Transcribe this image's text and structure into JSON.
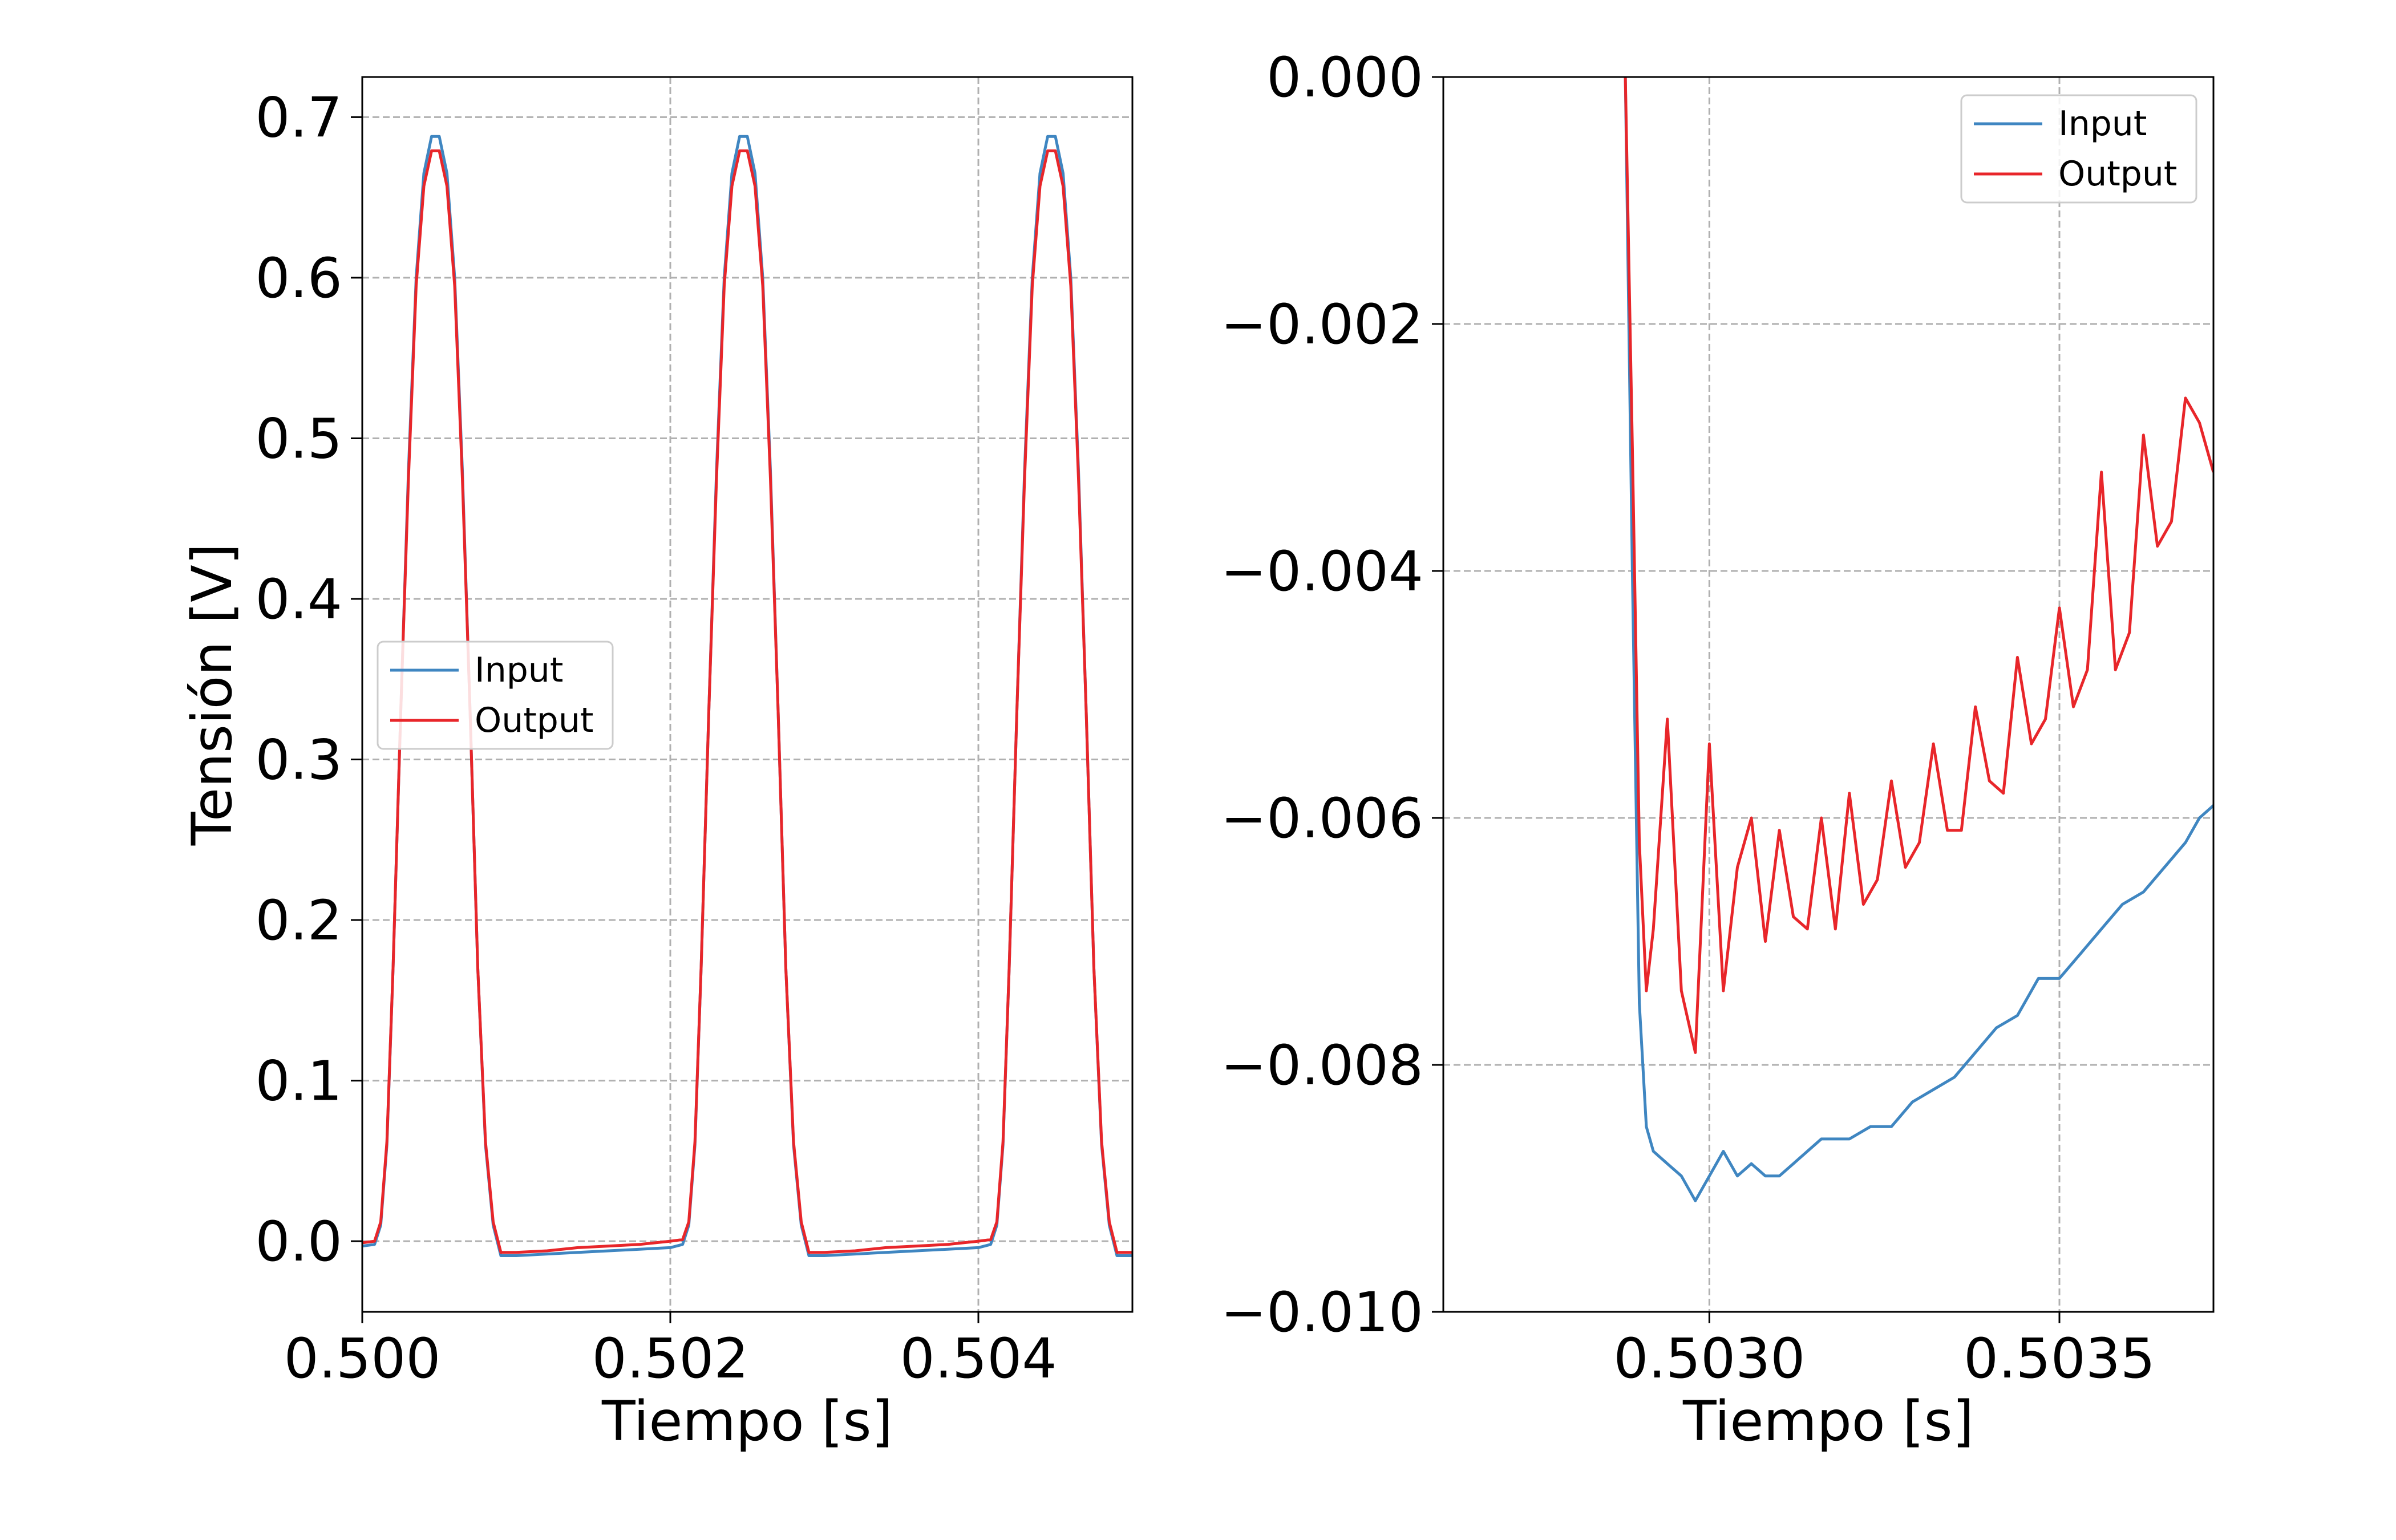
{
  "chart_data": [
    {
      "type": "line",
      "xlabel": "Tiempo [s]",
      "ylabel": "Tensión [V]",
      "xlim": [
        0.5,
        0.505
      ],
      "ylim": [
        -0.044,
        0.725
      ],
      "xticks": [
        0.5,
        0.502,
        0.504
      ],
      "xtick_labels": [
        "0.500",
        "0.502",
        "0.504"
      ],
      "yticks": [
        0.0,
        0.1,
        0.2,
        0.3,
        0.4,
        0.5,
        0.6,
        0.7
      ],
      "ytick_labels": [
        "0.0",
        "0.1",
        "0.2",
        "0.3",
        "0.4",
        "0.5",
        "0.6",
        "0.7"
      ],
      "grid": true,
      "legend_position": "center-left",
      "series": [
        {
          "name": "Input",
          "color": "#3f86c1",
          "x": [
            0.5,
            0.50008,
            0.50012,
            0.50016,
            0.5002,
            0.50025,
            0.5003,
            0.50035,
            0.5004,
            0.50045,
            0.5005,
            0.50055,
            0.5006,
            0.50065,
            0.5007,
            0.50075,
            0.5008,
            0.50085,
            0.5009,
            0.501,
            0.5012,
            0.5014,
            0.5016,
            0.5018,
            0.502,
            0.50208,
            0.50212,
            0.50216,
            0.5022,
            0.50225,
            0.5023,
            0.50235,
            0.5024,
            0.50245,
            0.5025,
            0.50255,
            0.5026,
            0.50265,
            0.5027,
            0.50275,
            0.5028,
            0.50285,
            0.5029,
            0.503,
            0.5032,
            0.5034,
            0.5036,
            0.5038,
            0.504,
            0.50408,
            0.50412,
            0.50416,
            0.5042,
            0.50425,
            0.5043,
            0.50435,
            0.5044,
            0.50445,
            0.5045,
            0.50455,
            0.5046,
            0.50465,
            0.5047,
            0.50475,
            0.5048,
            0.50485,
            0.5049,
            0.50495,
            0.505
          ],
          "y": [
            -0.003,
            -0.002,
            0.01,
            0.06,
            0.17,
            0.33,
            0.48,
            0.6,
            0.665,
            0.688,
            0.688,
            0.665,
            0.6,
            0.48,
            0.33,
            0.17,
            0.06,
            0.01,
            -0.009,
            -0.009,
            -0.008,
            -0.007,
            -0.006,
            -0.005,
            -0.004,
            -0.002,
            0.01,
            0.06,
            0.17,
            0.33,
            0.48,
            0.6,
            0.665,
            0.688,
            0.688,
            0.665,
            0.6,
            0.48,
            0.33,
            0.17,
            0.06,
            0.01,
            -0.009,
            -0.009,
            -0.008,
            -0.007,
            -0.006,
            -0.005,
            -0.004,
            -0.002,
            0.01,
            0.06,
            0.17,
            0.33,
            0.48,
            0.6,
            0.665,
            0.688,
            0.688,
            0.665,
            0.6,
            0.48,
            0.33,
            0.17,
            0.06,
            0.01,
            -0.009,
            -0.009,
            -0.009
          ]
        },
        {
          "name": "Output",
          "color": "#e8262a",
          "x": [
            0.5,
            0.50008,
            0.50012,
            0.50016,
            0.5002,
            0.50025,
            0.5003,
            0.50035,
            0.5004,
            0.50045,
            0.5005,
            0.50055,
            0.5006,
            0.50065,
            0.5007,
            0.50075,
            0.5008,
            0.50085,
            0.5009,
            0.501,
            0.5012,
            0.5014,
            0.5016,
            0.5018,
            0.502,
            0.50208,
            0.50212,
            0.50216,
            0.5022,
            0.50225,
            0.5023,
            0.50235,
            0.5024,
            0.50245,
            0.5025,
            0.50255,
            0.5026,
            0.50265,
            0.5027,
            0.50275,
            0.5028,
            0.50285,
            0.5029,
            0.503,
            0.5032,
            0.5034,
            0.5036,
            0.5038,
            0.504,
            0.50408,
            0.50412,
            0.50416,
            0.5042,
            0.50425,
            0.5043,
            0.50435,
            0.5044,
            0.50445,
            0.5045,
            0.50455,
            0.5046,
            0.50465,
            0.5047,
            0.50475,
            0.5048,
            0.50485,
            0.5049,
            0.50495,
            0.505
          ],
          "y": [
            -0.001,
            0.0,
            0.012,
            0.062,
            0.17,
            0.33,
            0.475,
            0.595,
            0.657,
            0.679,
            0.679,
            0.657,
            0.595,
            0.475,
            0.33,
            0.17,
            0.062,
            0.012,
            -0.007,
            -0.007,
            -0.006,
            -0.004,
            -0.003,
            -0.002,
            0.0,
            0.001,
            0.012,
            0.062,
            0.17,
            0.33,
            0.475,
            0.595,
            0.657,
            0.679,
            0.679,
            0.657,
            0.595,
            0.475,
            0.33,
            0.17,
            0.062,
            0.012,
            -0.007,
            -0.007,
            -0.006,
            -0.004,
            -0.003,
            -0.002,
            0.0,
            0.001,
            0.012,
            0.062,
            0.17,
            0.33,
            0.475,
            0.595,
            0.657,
            0.679,
            0.679,
            0.657,
            0.595,
            0.475,
            0.33,
            0.17,
            0.062,
            0.012,
            -0.007,
            -0.007,
            -0.007
          ]
        }
      ]
    },
    {
      "type": "line",
      "xlabel": "Tiempo [s]",
      "ylabel": "",
      "xlim": [
        0.50262,
        0.50372
      ],
      "ylim": [
        -0.01,
        0.0
      ],
      "xticks": [
        0.503,
        0.5035
      ],
      "xtick_labels": [
        "0.5030",
        "0.5035"
      ],
      "yticks": [
        0.0,
        -0.002,
        -0.004,
        -0.006,
        -0.008,
        -0.01
      ],
      "ytick_labels": [
        "0.000",
        "−0.002",
        "−0.004",
        "−0.006",
        "−0.008",
        "−0.010"
      ],
      "grid": true,
      "legend_position": "upper-right",
      "series": [
        {
          "name": "Input",
          "color": "#3f86c1",
          "x": [
            0.50288,
            0.50289,
            0.5029,
            0.50291,
            0.50292,
            0.50294,
            0.50296,
            0.50298,
            0.503,
            0.50302,
            0.50304,
            0.50306,
            0.50308,
            0.5031,
            0.50312,
            0.50314,
            0.50316,
            0.50318,
            0.5032,
            0.50323,
            0.50326,
            0.50329,
            0.50332,
            0.50335,
            0.50338,
            0.50341,
            0.50344,
            0.50347,
            0.5035,
            0.50353,
            0.50356,
            0.50359,
            0.50362,
            0.50365,
            0.50368,
            0.5037,
            0.50372
          ],
          "y": [
            0.0,
            -0.004,
            -0.0075,
            -0.0085,
            -0.0087,
            -0.0088,
            -0.0089,
            -0.0091,
            -0.0089,
            -0.0087,
            -0.0089,
            -0.0088,
            -0.0089,
            -0.0089,
            -0.0088,
            -0.0087,
            -0.0086,
            -0.0086,
            -0.0086,
            -0.0085,
            -0.0085,
            -0.0083,
            -0.0082,
            -0.0081,
            -0.0079,
            -0.0077,
            -0.0076,
            -0.0073,
            -0.0073,
            -0.0071,
            -0.0069,
            -0.0067,
            -0.0066,
            -0.0064,
            -0.0062,
            -0.006,
            -0.0059
          ]
        },
        {
          "name": "Output",
          "color": "#e8262a",
          "x": [
            0.50288,
            0.50289,
            0.5029,
            0.50291,
            0.50292,
            0.50294,
            0.50296,
            0.50298,
            0.503,
            0.50302,
            0.50304,
            0.50306,
            0.50308,
            0.5031,
            0.50312,
            0.50314,
            0.50316,
            0.50318,
            0.5032,
            0.50322,
            0.50324,
            0.50326,
            0.50328,
            0.5033,
            0.50332,
            0.50334,
            0.50336,
            0.50338,
            0.5034,
            0.50342,
            0.50344,
            0.50346,
            0.50348,
            0.5035,
            0.50352,
            0.50354,
            0.50356,
            0.50358,
            0.5036,
            0.50362,
            0.50364,
            0.50366,
            0.50368,
            0.5037,
            0.50372
          ],
          "y": [
            0.0,
            -0.003,
            -0.0062,
            -0.0074,
            -0.0069,
            -0.0052,
            -0.0074,
            -0.0079,
            -0.0054,
            -0.0074,
            -0.0064,
            -0.006,
            -0.007,
            -0.0061,
            -0.0068,
            -0.0069,
            -0.006,
            -0.0069,
            -0.0058,
            -0.0067,
            -0.0065,
            -0.0057,
            -0.0064,
            -0.0062,
            -0.0054,
            -0.0061,
            -0.0061,
            -0.0051,
            -0.0057,
            -0.0058,
            -0.0047,
            -0.0054,
            -0.0052,
            -0.0043,
            -0.0051,
            -0.0048,
            -0.0032,
            -0.0048,
            -0.0045,
            -0.0029,
            -0.0038,
            -0.0036,
            -0.0026,
            -0.0028,
            -0.0032
          ]
        }
      ]
    }
  ]
}
